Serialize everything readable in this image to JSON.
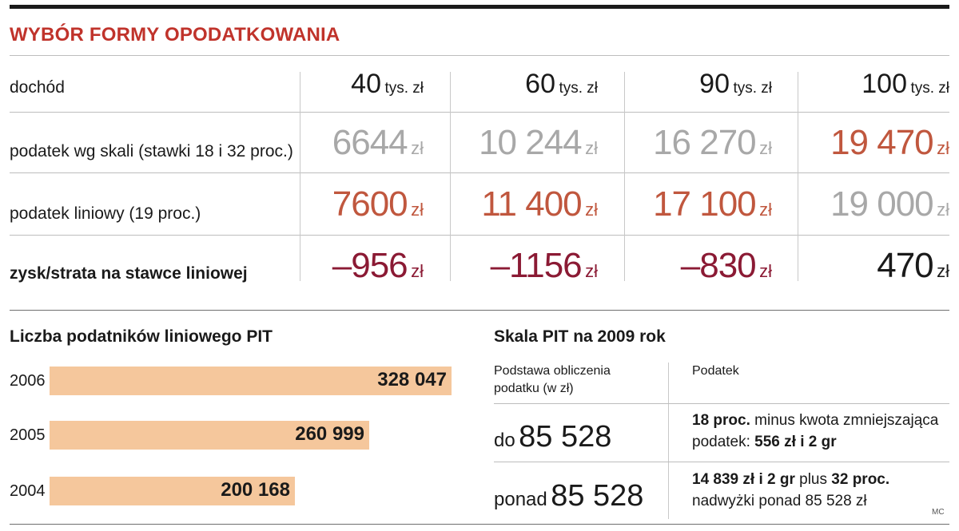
{
  "title": "WYBÓR FORMY OPODATKOWANIA",
  "colors": {
    "accent": "#c0332b",
    "orange": "#c0573e",
    "gray": "#a8a8a8",
    "crimson": "#8b1a34",
    "dark": "#1a1a1a",
    "bar": "#f5c79c"
  },
  "table": {
    "rows": {
      "income": "dochód",
      "scale_tax": "podatek wg skali (stawki 18 i 32 proc.)",
      "flat_tax": "podatek liniowy (19 proc.)",
      "gain_loss": "zysk/strata na stawce liniowej"
    },
    "columns": [
      {
        "income": "40",
        "income_unit": "tys. zł",
        "scale_tax": "6644",
        "flat_tax": "7600",
        "gain_loss": "–956",
        "unit": "zł"
      },
      {
        "income": "60",
        "income_unit": "tys. zł",
        "scale_tax": "10 244",
        "flat_tax": "11 400",
        "gain_loss": "–1156",
        "unit": "zł"
      },
      {
        "income": "90",
        "income_unit": "tys. zł",
        "scale_tax": "16 270",
        "flat_tax": "17 100",
        "gain_loss": "–830",
        "unit": "zł"
      },
      {
        "income": "100",
        "income_unit": "tys. zł",
        "scale_tax": "19 470",
        "flat_tax": "19 000",
        "gain_loss": "470",
        "unit": "zł"
      }
    ]
  },
  "chart_data": {
    "type": "bar",
    "orientation": "horizontal",
    "title": "Liczba podatników liniowego PIT",
    "categories": [
      "2006",
      "2005",
      "2004"
    ],
    "values": [
      328047,
      260999,
      200168
    ],
    "value_labels": [
      "328 047",
      "260 999",
      "200 168"
    ],
    "xlim": [
      0,
      328047
    ]
  },
  "pit_scale": {
    "title": "Skala PIT na 2009 rok",
    "col1_header": [
      "Podstawa obliczenia",
      "podatku (w zł)"
    ],
    "col2_header": "Podatek",
    "rows": [
      {
        "prefix": "do",
        "amount": "85 528",
        "line1_bold": "18 proc.",
        "line1_rest": " minus kwota zmniejszająca",
        "line2_rest": "podatek: ",
        "line2_bold": "556 zł i 2 gr"
      },
      {
        "prefix": "ponad",
        "amount": "85 528",
        "line1_bold": "14 839 zł i 2 gr",
        "line1_mid": " plus ",
        "line1_bold2": "32 proc.",
        "line2_rest": "nadwyżki ponad 85 528 zł"
      }
    ]
  },
  "credit": "MC"
}
